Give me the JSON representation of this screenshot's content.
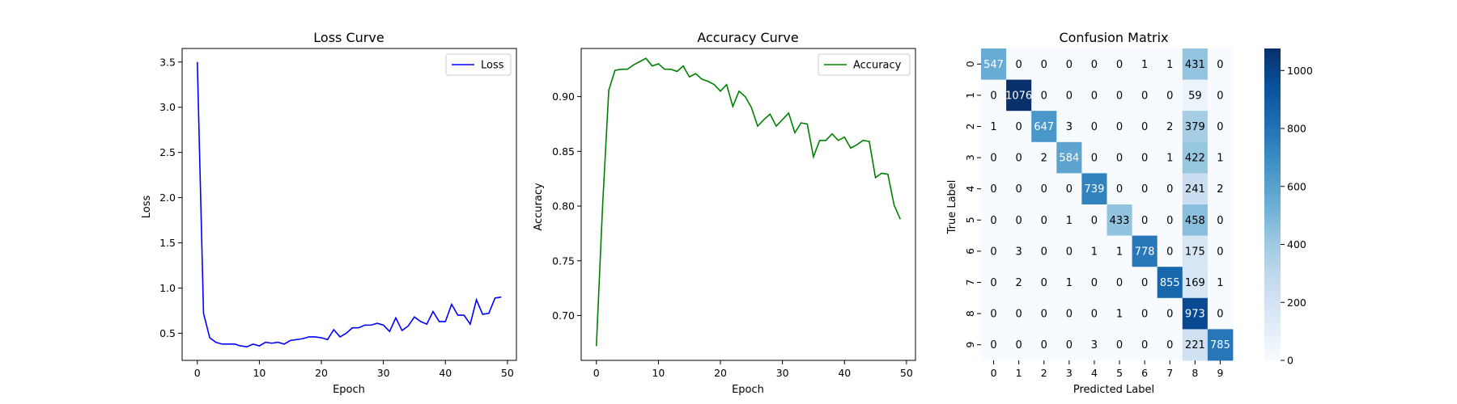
{
  "chart_data": [
    {
      "type": "line",
      "title": "Loss Curve",
      "xlabel": "Epoch",
      "ylabel": "Loss",
      "xlim": [
        -2.45,
        51.45
      ],
      "ylim": [
        0.2,
        3.65
      ],
      "xticks": [
        0,
        10,
        20,
        30,
        40,
        50
      ],
      "yticks": [
        0.5,
        1.0,
        1.5,
        2.0,
        2.5,
        3.0,
        3.5
      ],
      "ytick_labels": [
        "0.5",
        "1.0",
        "1.5",
        "2.0",
        "2.5",
        "3.0",
        "3.5"
      ],
      "legend_position": "top-right",
      "series": [
        {
          "name": "Loss",
          "color": "#0000ff",
          "x": [
            0,
            1,
            2,
            3,
            4,
            5,
            6,
            7,
            8,
            9,
            10,
            11,
            12,
            13,
            14,
            15,
            16,
            17,
            18,
            19,
            20,
            21,
            22,
            23,
            24,
            25,
            26,
            27,
            28,
            29,
            30,
            31,
            32,
            33,
            34,
            35,
            36,
            37,
            38,
            39,
            40,
            41,
            42,
            43,
            44,
            45,
            46,
            47,
            48,
            49
          ],
          "values": [
            3.5,
            0.72,
            0.45,
            0.4,
            0.38,
            0.38,
            0.38,
            0.36,
            0.35,
            0.38,
            0.36,
            0.4,
            0.39,
            0.4,
            0.38,
            0.42,
            0.43,
            0.44,
            0.46,
            0.46,
            0.45,
            0.43,
            0.54,
            0.46,
            0.5,
            0.56,
            0.56,
            0.59,
            0.59,
            0.61,
            0.59,
            0.52,
            0.67,
            0.53,
            0.58,
            0.68,
            0.63,
            0.6,
            0.74,
            0.63,
            0.63,
            0.82,
            0.7,
            0.7,
            0.6,
            0.87,
            0.71,
            0.72,
            0.89,
            0.9
          ]
        }
      ]
    },
    {
      "type": "line",
      "title": "Accuracy Curve",
      "xlabel": "Epoch",
      "ylabel": "Accuracy",
      "xlim": [
        -2.45,
        51.45
      ],
      "ylim": [
        0.659,
        0.944
      ],
      "xticks": [
        0,
        10,
        20,
        30,
        40,
        50
      ],
      "yticks": [
        0.7,
        0.75,
        0.8,
        0.85,
        0.9
      ],
      "ytick_labels": [
        "0.70",
        "0.75",
        "0.80",
        "0.85",
        "0.90"
      ],
      "legend_position": "top-right",
      "series": [
        {
          "name": "Accuracy",
          "color": "#008000",
          "x": [
            0,
            1,
            2,
            3,
            4,
            5,
            6,
            7,
            8,
            9,
            10,
            11,
            12,
            13,
            14,
            15,
            16,
            17,
            18,
            19,
            20,
            21,
            22,
            23,
            24,
            25,
            26,
            27,
            28,
            29,
            30,
            31,
            32,
            33,
            34,
            35,
            36,
            37,
            38,
            39,
            40,
            41,
            42,
            43,
            44,
            45,
            46,
            47,
            48,
            49
          ],
          "values": [
            0.672,
            0.8,
            0.906,
            0.924,
            0.925,
            0.925,
            0.929,
            0.932,
            0.935,
            0.928,
            0.93,
            0.925,
            0.925,
            0.923,
            0.928,
            0.918,
            0.921,
            0.916,
            0.914,
            0.911,
            0.905,
            0.911,
            0.891,
            0.905,
            0.9,
            0.89,
            0.873,
            0.879,
            0.884,
            0.873,
            0.879,
            0.885,
            0.867,
            0.876,
            0.875,
            0.845,
            0.86,
            0.86,
            0.866,
            0.86,
            0.863,
            0.853,
            0.856,
            0.86,
            0.859,
            0.826,
            0.83,
            0.829,
            0.801,
            0.788
          ]
        }
      ]
    },
    {
      "type": "heatmap",
      "title": "Confusion Matrix",
      "xlabel": "Predicted Label",
      "ylabel": "True Label",
      "x_categories": [
        "0",
        "1",
        "2",
        "3",
        "4",
        "5",
        "6",
        "7",
        "8",
        "9"
      ],
      "y_categories": [
        "0",
        "1",
        "2",
        "3",
        "4",
        "5",
        "6",
        "7",
        "8",
        "9"
      ],
      "colormap": "Blues",
      "vmin": 0,
      "vmax": 1076,
      "colorbar_ticks": [
        0,
        200,
        400,
        600,
        800,
        1000
      ],
      "matrix": [
        [
          547,
          0,
          0,
          0,
          0,
          0,
          1,
          1,
          431,
          0
        ],
        [
          0,
          1076,
          0,
          0,
          0,
          0,
          0,
          0,
          59,
          0
        ],
        [
          1,
          0,
          647,
          3,
          0,
          0,
          0,
          2,
          379,
          0
        ],
        [
          0,
          0,
          2,
          584,
          0,
          0,
          0,
          1,
          422,
          1
        ],
        [
          0,
          0,
          0,
          0,
          739,
          0,
          0,
          0,
          241,
          2
        ],
        [
          0,
          0,
          0,
          1,
          0,
          433,
          0,
          0,
          458,
          0
        ],
        [
          0,
          3,
          0,
          0,
          1,
          1,
          778,
          0,
          175,
          0
        ],
        [
          0,
          2,
          0,
          1,
          0,
          0,
          0,
          855,
          169,
          1
        ],
        [
          0,
          0,
          0,
          0,
          0,
          1,
          0,
          0,
          973,
          0
        ],
        [
          0,
          0,
          0,
          0,
          3,
          0,
          0,
          0,
          221,
          785
        ]
      ]
    }
  ]
}
